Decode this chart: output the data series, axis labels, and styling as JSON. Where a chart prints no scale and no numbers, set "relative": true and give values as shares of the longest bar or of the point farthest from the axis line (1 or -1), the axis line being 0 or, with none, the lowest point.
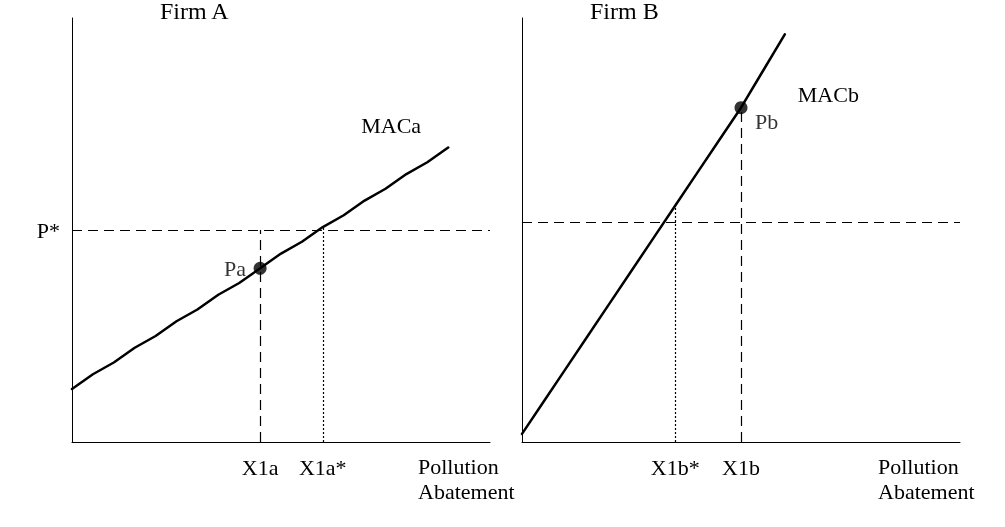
{
  "chart_data": [
    {
      "type": "line",
      "title": "Firm A",
      "relative": true,
      "categories": [
        null,
        null,
        null,
        null,
        null,
        null,
        null,
        null,
        null,
        "X1a",
        null,
        null,
        "X1a*",
        null,
        null,
        null,
        null,
        null,
        null,
        null,
        null
      ],
      "xlabel": "Pollution Abatement",
      "tick_labels": "x",
      "series": [
        {
          "name": "MACa",
          "color": "#000000",
          "values": [
            0.18,
            0.23,
            0.27,
            0.32,
            0.36,
            0.41,
            0.45,
            0.5,
            0.54,
            0.59,
            0.64,
            0.68,
            0.73,
            0.77,
            0.82,
            0.86,
            0.91,
            0.95,
            1.0,
            null,
            null
          ],
          "marker": "none"
        },
        {
          "type": "scatter",
          "color": "#000000",
          "x": [
            "X1a"
          ],
          "values": [
            0.59
          ],
          "marker": "circle"
        }
      ],
      "annotations": [
        {
          "text": "Pa",
          "x": "X1a",
          "y": 0.59
        }
      ],
      "ref_lines": [
        {
          "axis": "y",
          "value": 0.72,
          "label": "P*",
          "line_style": "dashed"
        },
        {
          "axis": "x",
          "value": "X1a",
          "line_style": "dashed"
        },
        {
          "axis": "x",
          "value": "X1a*",
          "line_style": "dotted"
        }
      ]
    },
    {
      "type": "line",
      "title": "Firm B",
      "relative": true,
      "categories": [
        null,
        null,
        null,
        null,
        null,
        null,
        null,
        "X1b*",
        null,
        null,
        "X1b",
        null,
        null,
        null,
        null,
        null,
        null,
        null,
        null,
        null,
        null
      ],
      "xlabel": "Pollution Abatement",
      "tick_labels": "x",
      "series": [
        {
          "name": "MACb",
          "color": "#000000",
          "values": [
            0.02,
            0.1,
            0.18,
            0.26,
            0.34,
            0.42,
            0.5,
            0.58,
            0.66,
            0.74,
            0.82,
            0.91,
            1.0,
            null,
            null,
            null,
            null,
            null,
            null,
            null,
            null
          ],
          "marker": "none"
        },
        {
          "type": "scatter",
          "color": "#000000",
          "x": [
            "X1b"
          ],
          "values": [
            0.82
          ],
          "marker": "circle"
        }
      ],
      "annotations": [
        {
          "text": "Pb",
          "x": "X1b",
          "y": 0.82
        }
      ],
      "ref_lines": [
        {
          "axis": "y",
          "value": 0.54,
          "line_style": "dashed"
        },
        {
          "axis": "x",
          "value": "X1b",
          "line_style": "dashed"
        },
        {
          "axis": "x",
          "value": "X1b*",
          "line_style": "dotted"
        }
      ]
    }
  ]
}
